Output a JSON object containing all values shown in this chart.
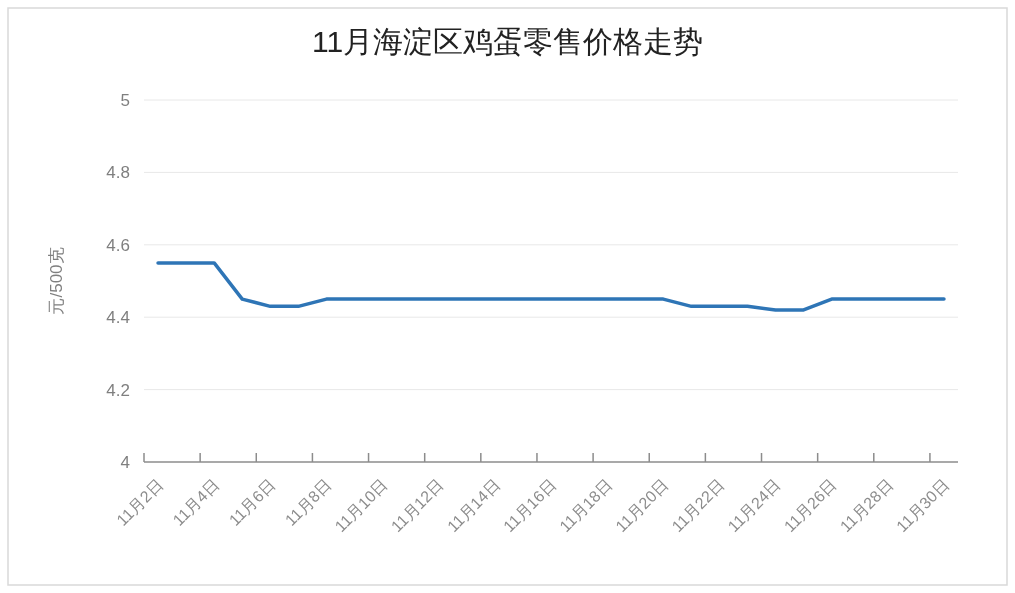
{
  "chart_data": {
    "type": "line",
    "title": "11月海淀区鸡蛋零售价格走势",
    "ylabel": "元/500克",
    "categories": [
      "11月2日",
      null,
      "11月4日",
      null,
      "11月6日",
      null,
      "11月8日",
      null,
      "11月10日",
      null,
      "11月12日",
      null,
      "11月14日",
      null,
      "11月16日",
      null,
      "11月18日",
      null,
      "11月20日",
      null,
      "11月22日",
      null,
      "11月24日",
      null,
      "11月26日",
      null,
      "11月28日",
      null,
      "11月30日"
    ],
    "series": [
      {
        "color": "#2e75b6",
        "values": [
          4.55,
          4.55,
          4.55,
          4.45,
          4.43,
          4.43,
          4.45,
          4.45,
          4.45,
          4.45,
          4.45,
          4.45,
          4.45,
          4.45,
          4.45,
          4.45,
          4.45,
          4.45,
          4.45,
          4.43,
          4.43,
          4.43,
          4.42,
          4.42,
          4.45,
          4.45,
          4.45,
          4.45,
          4.45
        ]
      }
    ],
    "ylim": [
      4,
      5
    ],
    "yticks": [
      4,
      4.2,
      4.4,
      4.6,
      4.8,
      5
    ],
    "grid": "y",
    "marker": "none",
    "line_style": "solid"
  }
}
